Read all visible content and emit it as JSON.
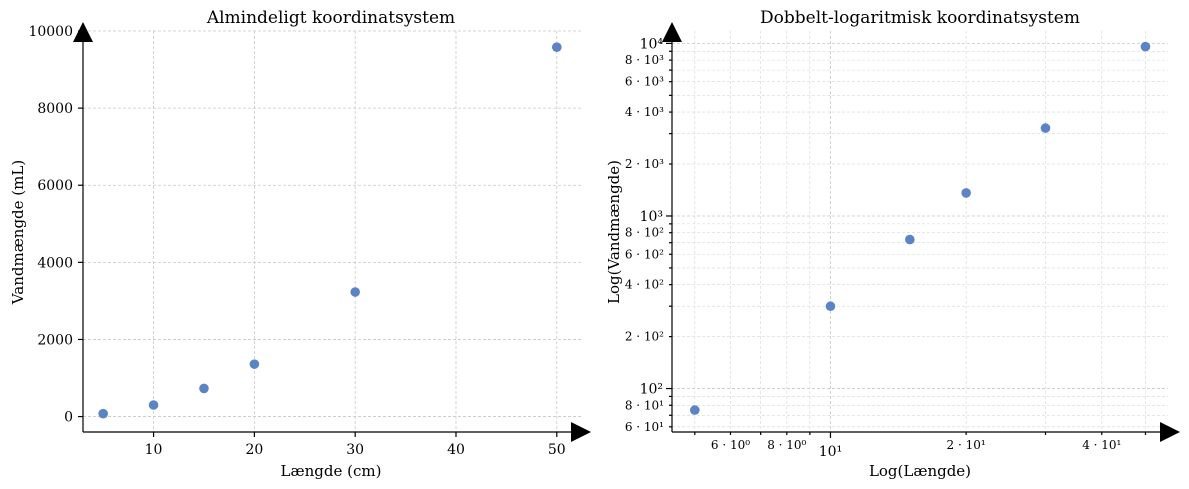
{
  "chart_data": [
    {
      "type": "scatter",
      "title": "Almindeligt koordinatsystem",
      "xlabel": "Længde (cm)",
      "ylabel": "Vandmængde (mL)",
      "xlim": [
        3,
        52.5
      ],
      "ylim": [
        -400,
        10000
      ],
      "x_ticks": [
        10,
        20,
        30,
        40,
        50
      ],
      "x_tick_labels": [
        "10",
        "20",
        "30",
        "40",
        "50"
      ],
      "y_ticks": [
        0,
        2000,
        4000,
        6000,
        8000,
        10000
      ],
      "y_tick_labels": [
        "0",
        "2000",
        "4000",
        "6000",
        "8000",
        "10000"
      ],
      "grid": true,
      "color": "#5b84c4",
      "x": [
        5,
        10,
        15,
        20,
        30,
        50
      ],
      "y": [
        75,
        300,
        730,
        1360,
        3230,
        9580
      ]
    },
    {
      "type": "scatter",
      "title": "Dobbelt-logaritmisk koordinatsystem",
      "xlabel": "Log(Længde)",
      "ylabel": "Log(Vandmængde)",
      "xscale": "log",
      "yscale": "log",
      "xlim": [
        4.45,
        56.1
      ],
      "ylim": [
        56,
        11800
      ],
      "x_major_ticks": [
        10
      ],
      "x_major_tick_labels": [
        "10¹"
      ],
      "x_minor_ticks": [
        6,
        8,
        20,
        40
      ],
      "x_minor_tick_labels": [
        "6 · 10⁰",
        "8 · 10⁰",
        "2 · 10¹",
        "4 · 10¹"
      ],
      "y_major_ticks": [
        100,
        1000,
        10000
      ],
      "y_major_tick_labels": [
        "10²",
        "10³",
        "10⁴"
      ],
      "y_minor_ticks": [
        60,
        80,
        200,
        400,
        600,
        800,
        2000,
        4000,
        6000,
        8000
      ],
      "y_minor_tick_labels": [
        "6 · 10¹",
        "8 · 10¹",
        "2 · 10²",
        "4 · 10²",
        "6 · 10²",
        "8 · 10²",
        "2 · 10³",
        "4 · 10³",
        "6 · 10³",
        "8 · 10³"
      ],
      "grid": true,
      "color": "#5b84c4",
      "x": [
        5,
        10,
        15,
        20,
        30,
        50
      ],
      "y": [
        75,
        300,
        730,
        1360,
        3230,
        9580
      ]
    }
  ]
}
